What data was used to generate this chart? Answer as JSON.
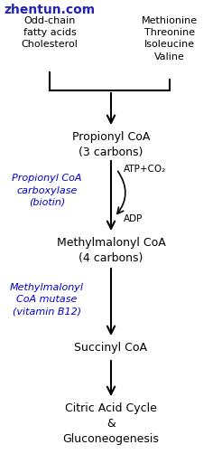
{
  "bg_color": "#ffffff",
  "watermark": "zhentun.com",
  "watermark_color": "#2222bb",
  "watermark_fontsize": 10,
  "top_left_text": "Odd-chain\nfatty acids\nCholesterol",
  "top_right_text": "Methionine\nThreonine\nIsoleucine\nValine",
  "box1_text": "Propionyl CoA\n(3 carbons)",
  "box2_text": "Methylmalonyl CoA\n(4 carbons)",
  "box3_text": "Succinyl CoA",
  "box4_text": "Citric Acid Cycle\n&\nGluconeogenesis",
  "enzyme1_text": "Propionyl CoA\ncarboxylase\n(biotin)",
  "enzyme2_text": "Methylmalonyl\nCoA mutase\n(vitamin B12)",
  "atp_text": "ATP+CO₂",
  "adp_text": "ADP",
  "enzyme_color": "#0000cc",
  "text_color": "#000000",
  "fig_width": 2.46,
  "fig_height": 5.23,
  "dpi": 100
}
